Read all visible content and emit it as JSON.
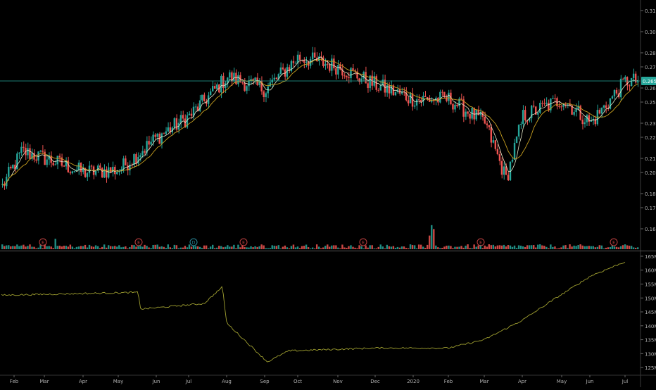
{
  "chart_data": [
    {
      "type": "candlestick",
      "pane": "price",
      "y_axis_side": "right",
      "ylim": [
        0.145,
        0.32
      ],
      "y_ticks": [
        "0.315",
        "0.300",
        "0.285",
        "0.275",
        "0.260",
        "0.250",
        "0.235",
        "0.225",
        "0.210",
        "0.200",
        "0.185",
        "0.175",
        "0.160"
      ],
      "last_price_label": "0.265",
      "last_price": 0.265,
      "colors": {
        "up": "#26a69a",
        "down": "#ef5350",
        "ma_fast": "#e8e8c8",
        "ma_slow": "#c8a020",
        "price_line": "#26a69a",
        "volume_ma": "#d07060"
      },
      "x_ticks": [
        "Feb",
        "Mar",
        "Apr",
        "May",
        "Jun",
        "Jul",
        "Aug",
        "Sep",
        "Oct",
        "Nov",
        "Dec",
        "2020",
        "Feb",
        "Mar",
        "Apr",
        "May",
        "Jun",
        "Jul"
      ],
      "close_keypoints": [
        {
          "t": "Feb",
          "v": 0.19
        },
        {
          "t": "Feb+",
          "v": 0.215
        },
        {
          "t": "Mar",
          "v": 0.21
        },
        {
          "t": "Apr",
          "v": 0.2
        },
        {
          "t": "May",
          "v": 0.202
        },
        {
          "t": "Jun",
          "v": 0.225
        },
        {
          "t": "Jul",
          "v": 0.24
        },
        {
          "t": "Aug",
          "v": 0.268
        },
        {
          "t": "Sep",
          "v": 0.259
        },
        {
          "t": "Oct",
          "v": 0.282
        },
        {
          "t": "Nov",
          "v": 0.275
        },
        {
          "t": "Dec",
          "v": 0.262
        },
        {
          "t": "2020",
          "v": 0.252
        },
        {
          "t": "Feb",
          "v": 0.252
        },
        {
          "t": "Mar",
          "v": 0.235
        },
        {
          "t": "Mar+",
          "v": 0.195
        },
        {
          "t": "Apr",
          "v": 0.24
        },
        {
          "t": "May",
          "v": 0.252
        },
        {
          "t": "Jun",
          "v": 0.235
        },
        {
          "t": "Jul",
          "v": 0.265
        }
      ],
      "earnings_markers": [
        "E",
        "E",
        "D",
        "E",
        "E",
        "E",
        "E"
      ]
    },
    {
      "type": "line",
      "pane": "indicator",
      "y_axis_side": "right",
      "ylim": [
        123,
        166
      ],
      "y_ticks": [
        "165M",
        "160M",
        "155M",
        "150M",
        "145M",
        "140M",
        "135M",
        "130M",
        "125M"
      ],
      "colors": {
        "line": "#a0a030"
      },
      "keypoints": [
        {
          "t": "Feb",
          "v": 151
        },
        {
          "t": "May",
          "v": 152
        },
        {
          "t": "May+",
          "v": 146
        },
        {
          "t": "Jul",
          "v": 148
        },
        {
          "t": "Aug",
          "v": 154
        },
        {
          "t": "Aug+",
          "v": 141
        },
        {
          "t": "Sep",
          "v": 127
        },
        {
          "t": "Sep+",
          "v": 131
        },
        {
          "t": "Dec",
          "v": 132
        },
        {
          "t": "Feb",
          "v": 132
        },
        {
          "t": "Mar",
          "v": 135
        },
        {
          "t": "Apr",
          "v": 142
        },
        {
          "t": "May",
          "v": 150
        },
        {
          "t": "Jun",
          "v": 158
        },
        {
          "t": "Jul",
          "v": 163
        }
      ]
    }
  ]
}
